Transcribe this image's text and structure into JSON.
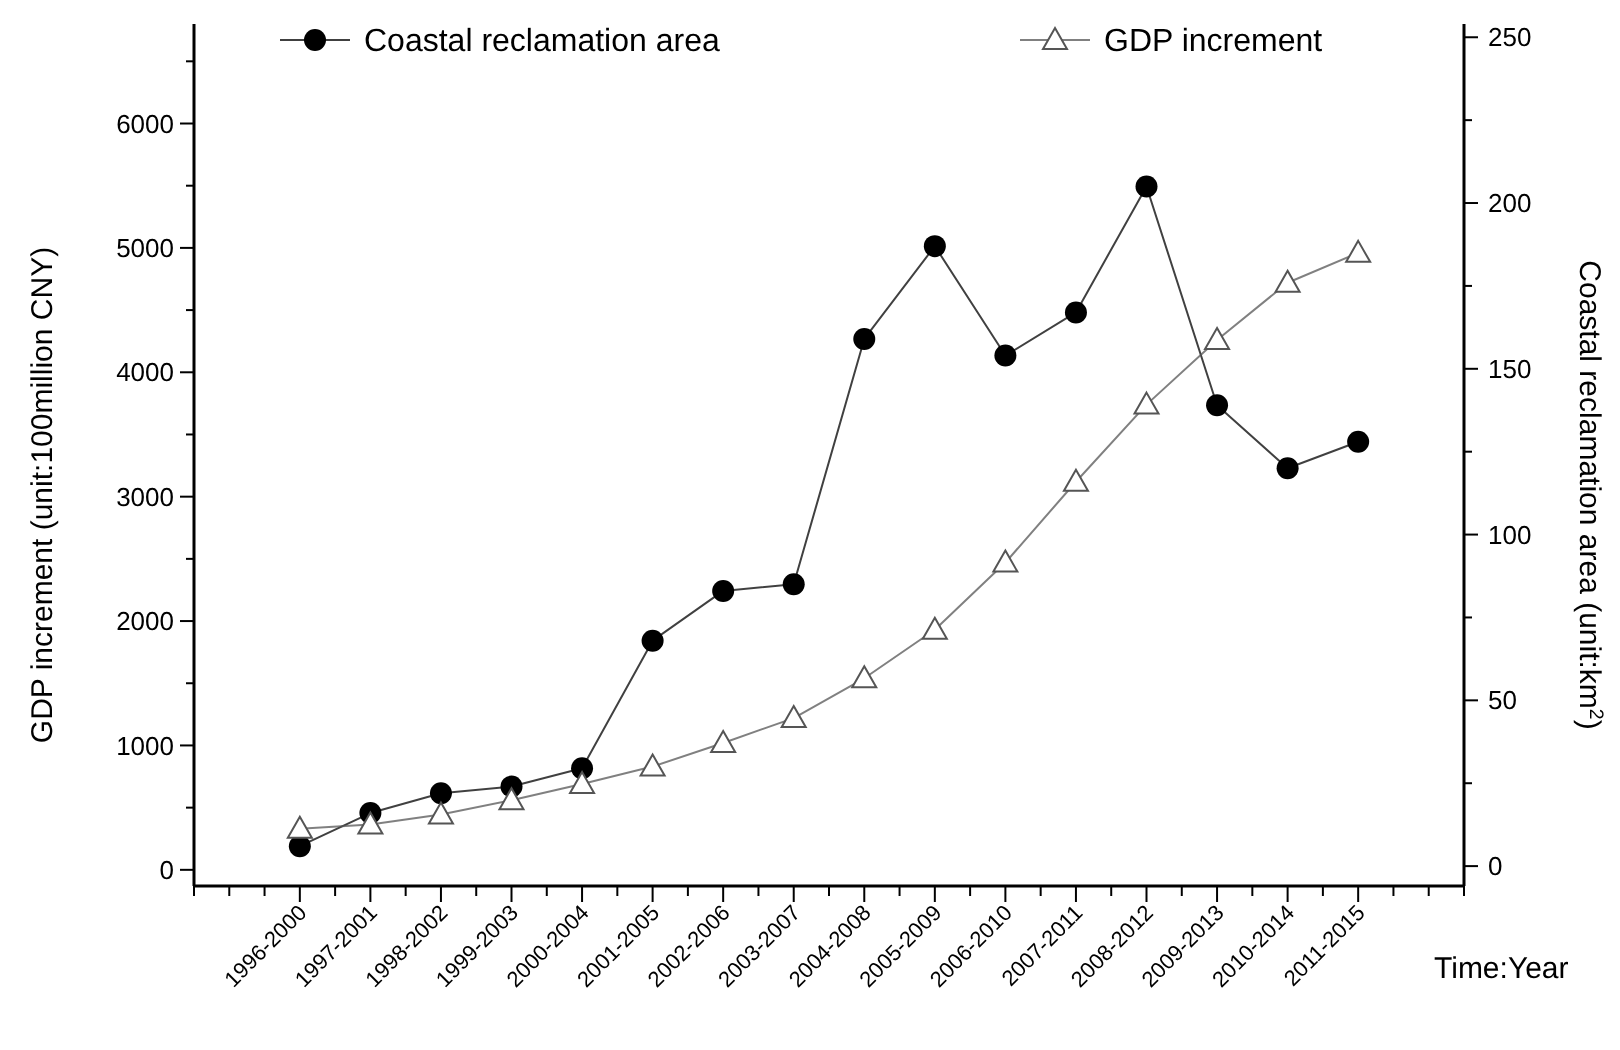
{
  "chart_data": {
    "type": "line",
    "categories": [
      "1996-2000",
      "1997-2001",
      "1998-2002",
      "1999-2003",
      "2000-2004",
      "2001-2005",
      "2002-2006",
      "2003-2007",
      "2004-2008",
      "2005-2009",
      "2006-2010",
      "2007-2011",
      "2008-2012",
      "2009-2013",
      "2010-2014",
      "2011-2015"
    ],
    "series": [
      {
        "name": "Coastal reclamation area",
        "color": "#000000",
        "marker": "circle",
        "axis": "y2",
        "values": [
          6,
          16,
          22,
          24,
          29.5,
          68,
          83,
          85,
          159,
          187,
          154,
          167,
          205,
          139,
          120,
          128
        ]
      },
      {
        "name": "GDP increment",
        "color": "#555555",
        "marker": "triangle",
        "values": [
          330,
          365,
          445,
          560,
          690,
          830,
          1020,
          1220,
          1540,
          1930,
          2470,
          3120,
          3740,
          4260,
          4720,
          4960
        ]
      }
    ],
    "xlabel": "Time:Year",
    "ylabel": "GDP increment (unit:100million CNY)",
    "y2label": "Coastal reclamation area (unit:km$^{2}$)",
    "ylim": [
      -130,
      6800
    ],
    "yticks": [
      0,
      {
        "value": 500,
        "label": null
      },
      1000,
      {
        "value": 1500,
        "label": null
      },
      2000,
      {
        "value": 2500,
        "label": null
      },
      3000,
      {
        "value": 3500,
        "label": null
      },
      4000,
      {
        "value": 4500,
        "label": null
      },
      5000,
      {
        "value": 5500,
        "label": null
      },
      6000,
      {
        "value": 6500,
        "label": null
      }
    ],
    "y2lim": [
      -6,
      254
    ],
    "y2ticks": [
      0,
      {
        "value": 25,
        "label": null
      },
      50,
      {
        "value": 75,
        "label": null
      },
      100,
      {
        "value": 125,
        "label": null
      },
      150,
      {
        "value": 175,
        "label": null
      },
      200,
      {
        "value": 225,
        "label": null
      },
      250
    ],
    "grid": false,
    "legend": "top",
    "line_style": "solid"
  }
}
